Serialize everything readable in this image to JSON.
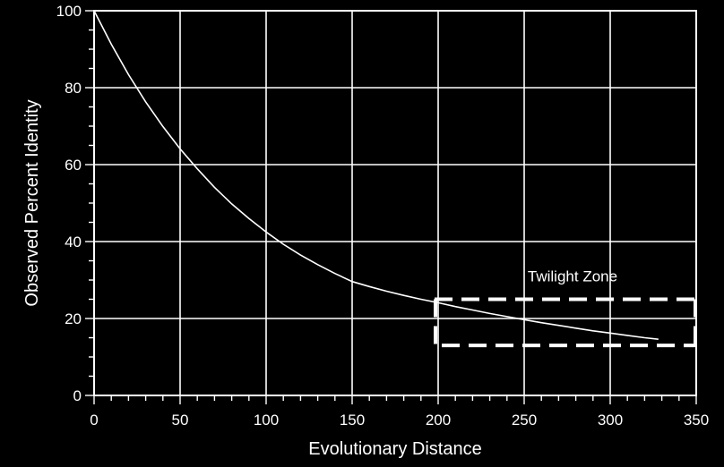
{
  "chart_data": {
    "type": "line",
    "title": "",
    "xlabel": "Evolutionary Distance",
    "ylabel": "Observed Percent Identity",
    "xlim": [
      0,
      350
    ],
    "ylim": [
      0,
      100
    ],
    "x_ticks": [
      0,
      50,
      100,
      150,
      200,
      250,
      300,
      350
    ],
    "y_ticks": [
      0,
      20,
      40,
      60,
      80,
      100
    ],
    "x_minor_step": 10,
    "y_minor_step": 5,
    "grid": true,
    "colors": {
      "background": "#000000",
      "foreground": "#ffffff"
    },
    "series": [
      {
        "x": [
          0,
          10,
          20,
          30,
          40,
          50,
          60,
          70,
          80,
          90,
          100,
          110,
          120,
          130,
          140,
          150,
          160,
          170,
          180,
          190,
          200,
          210,
          220,
          230,
          240,
          250,
          260,
          270,
          280,
          290,
          300,
          310,
          320,
          328
        ],
        "y": [
          100,
          91.3,
          83.4,
          76.3,
          69.9,
          64.1,
          58.9,
          54.1,
          49.8,
          46.0,
          42.5,
          39.3,
          36.5,
          34.0,
          31.7,
          29.6,
          28.3,
          27.1,
          26.0,
          25.0,
          24.1,
          23.1,
          22.2,
          21.3,
          20.5,
          19.7,
          18.9,
          18.2,
          17.5,
          16.8,
          16.2,
          15.6,
          15.0,
          14.6
        ]
      }
    ],
    "annotations": [
      {
        "text": "Twilight Zone",
        "x_range": [
          200,
          350
        ],
        "y_range": [
          13,
          25
        ]
      }
    ]
  }
}
